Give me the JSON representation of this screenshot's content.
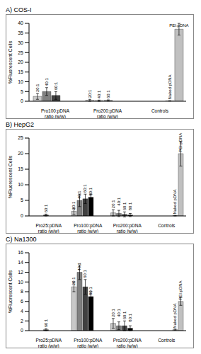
{
  "chart_data": [
    {
      "type": "bar",
      "title": "A) COS-I",
      "y_label": "%Fluorescent Cells",
      "categories": [
        "Pro100:pDNA ratio (w/w)",
        "Pro200:pDNA ratio (w/w)",
        "Controls"
      ],
      "series": [
        {
          "name": "20:1",
          "color": "#c8c8c8",
          "values": [
            2.5,
            0.5,
            null
          ],
          "errors": [
            1.5,
            0.5,
            null
          ]
        },
        {
          "name": "40:1",
          "color": "#808080",
          "values": [
            5,
            0.3,
            null
          ],
          "errors": [
            2,
            0.3,
            null
          ]
        },
        {
          "name": "60:1",
          "color": "#404040",
          "values": [
            3,
            0.4,
            null
          ],
          "errors": [
            2,
            0.3,
            null
          ]
        },
        {
          "name": "Naked pDNA",
          "color": "#e6e6e6",
          "values": [
            null,
            null,
            0.2
          ],
          "errors": [
            null,
            null,
            0.1
          ]
        },
        {
          "name": "PEI:pDNA",
          "color": "#c0c0c0",
          "values": [
            null,
            null,
            37
          ],
          "errors": [
            null,
            null,
            3
          ]
        }
      ],
      "ylim": [
        0,
        40
      ],
      "yticks": [
        0,
        5,
        10,
        15,
        20,
        25,
        30,
        35,
        40
      ]
    },
    {
      "type": "bar",
      "title": "B) HepG2",
      "y_label": "%Fluorescent Cells",
      "categories": [
        "Pro25:pDNA ratio (w/w)",
        "Pro100:pDNA ratio (w/w)",
        "Pro200:pDNA ratio (w/w)",
        "Controls"
      ],
      "series": [
        {
          "name": "20:1",
          "color": "#c8c8c8",
          "values": [
            null,
            1.5,
            1,
            null
          ],
          "errors": [
            null,
            1,
            1,
            null
          ]
        },
        {
          "name": "40:1",
          "color": "#808080",
          "values": [
            null,
            5,
            0.8,
            null
          ],
          "errors": [
            null,
            2,
            1,
            null
          ]
        },
        {
          "name": "60:1",
          "color": "#404040",
          "values": [
            0.3,
            5.5,
            0.5,
            null
          ],
          "errors": [
            0.3,
            1.5,
            0.8,
            null
          ]
        },
        {
          "name": "80:1",
          "color": "#000000",
          "values": [
            null,
            6,
            0.3,
            null
          ],
          "errors": [
            null,
            1,
            0.5,
            null
          ]
        },
        {
          "name": "Naked pDNA",
          "color": "#e6e6e6",
          "values": [
            null,
            null,
            null,
            0.1
          ],
          "errors": [
            null,
            null,
            null,
            0.1
          ]
        },
        {
          "name": "PEI:pDNA",
          "color": "#c0c0c0",
          "values": [
            null,
            null,
            null,
            20
          ],
          "errors": [
            null,
            null,
            null,
            4
          ]
        }
      ],
      "ylim": [
        0,
        25
      ],
      "yticks": [
        0,
        5,
        10,
        15,
        20,
        25
      ]
    },
    {
      "type": "bar",
      "title": "C) Na1300",
      "y_label": "%Fluorescent Cells",
      "categories": [
        "Pro25:pDNA ratio (w/w)",
        "Pro100:pDNA ratio (w/w)",
        "Pro200:pDNA ratio (w/w)",
        "Controls"
      ],
      "series": [
        {
          "name": "20:1",
          "color": "#c8c8c8",
          "values": [
            null,
            9,
            1.5,
            null
          ],
          "errors": [
            null,
            1,
            1,
            null
          ]
        },
        {
          "name": "40:1",
          "color": "#808080",
          "values": [
            null,
            12,
            1,
            null
          ],
          "errors": [
            null,
            1.5,
            0.8,
            null
          ]
        },
        {
          "name": "60:1",
          "color": "#404040",
          "values": [
            0.2,
            9,
            1,
            null
          ],
          "errors": [
            0.2,
            1.5,
            1,
            null
          ]
        },
        {
          "name": "80:1",
          "color": "#000000",
          "values": [
            null,
            7,
            0.5,
            null
          ],
          "errors": [
            null,
            1,
            0.5,
            null
          ]
        },
        {
          "name": "Naked pDNA",
          "color": "#e6e6e6",
          "values": [
            null,
            null,
            null,
            0.2
          ],
          "errors": [
            null,
            null,
            null,
            0.1
          ]
        },
        {
          "name": "PEI:pDNA",
          "color": "#c0c0c0",
          "values": [
            null,
            null,
            null,
            6
          ],
          "errors": [
            null,
            null,
            null,
            0.8
          ]
        }
      ],
      "ylim": [
        0,
        16
      ],
      "yticks": [
        0,
        2,
        4,
        6,
        8,
        10,
        12,
        14,
        16
      ]
    }
  ]
}
